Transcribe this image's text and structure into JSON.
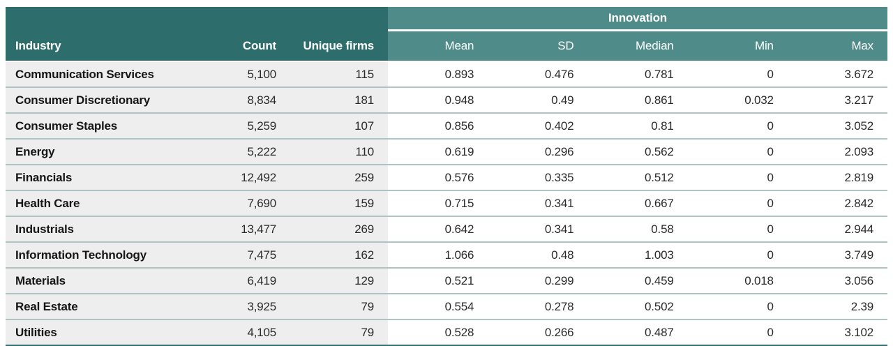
{
  "chart_data": {
    "type": "table",
    "title": "",
    "group_header": {
      "label": "Innovation",
      "span_columns": [
        "Mean",
        "SD",
        "Median",
        "Min",
        "Max"
      ]
    },
    "columns": [
      "Industry",
      "Count",
      "Unique firms",
      "Mean",
      "SD",
      "Median",
      "Min",
      "Max"
    ],
    "rows": [
      [
        "Communication Services",
        "5,100",
        "115",
        "0.893",
        "0.476",
        "0.781",
        "0",
        "3.672"
      ],
      [
        "Consumer Discretionary",
        "8,834",
        "181",
        "0.948",
        "0.49",
        "0.861",
        "0.032",
        "3.217"
      ],
      [
        "Consumer Staples",
        "5,259",
        "107",
        "0.856",
        "0.402",
        "0.81",
        "0",
        "3.052"
      ],
      [
        "Energy",
        "5,222",
        "110",
        "0.619",
        "0.296",
        "0.562",
        "0",
        "2.093"
      ],
      [
        "Financials",
        "12,492",
        "259",
        "0.576",
        "0.335",
        "0.512",
        "0",
        "2.819"
      ],
      [
        "Health Care",
        "7,690",
        "159",
        "0.715",
        "0.341",
        "0.667",
        "0",
        "2.842"
      ],
      [
        "Industrials",
        "13,477",
        "269",
        "0.642",
        "0.341",
        "0.58",
        "0",
        "2.944"
      ],
      [
        "Information Technology",
        "7,475",
        "162",
        "1.066",
        "0.48",
        "1.003",
        "0",
        "3.749"
      ],
      [
        "Materials",
        "6,419",
        "129",
        "0.521",
        "0.299",
        "0.459",
        "0.018",
        "3.056"
      ],
      [
        "Real Estate",
        "3,925",
        "79",
        "0.554",
        "0.278",
        "0.502",
        "0",
        "2.39"
      ],
      [
        "Utilities",
        "4,105",
        "79",
        "0.528",
        "0.266",
        "0.487",
        "0",
        "3.102"
      ]
    ],
    "layout_hints": {
      "group_header_position": "top-right-block",
      "gridlines": "horizontal-only",
      "left_block_columns": 3,
      "legend": "none"
    },
    "colors": {
      "header_dark_teal": "#2d6e6c",
      "header_light_teal": "#4f8b89",
      "left_block_row_bg": "#efeeee",
      "right_block_row_bg": "#ffffff",
      "row_divider": "#aec3c3",
      "bottom_border": "#33706e",
      "header_text": "#ffffff",
      "body_text": "#2b2b2b"
    }
  }
}
